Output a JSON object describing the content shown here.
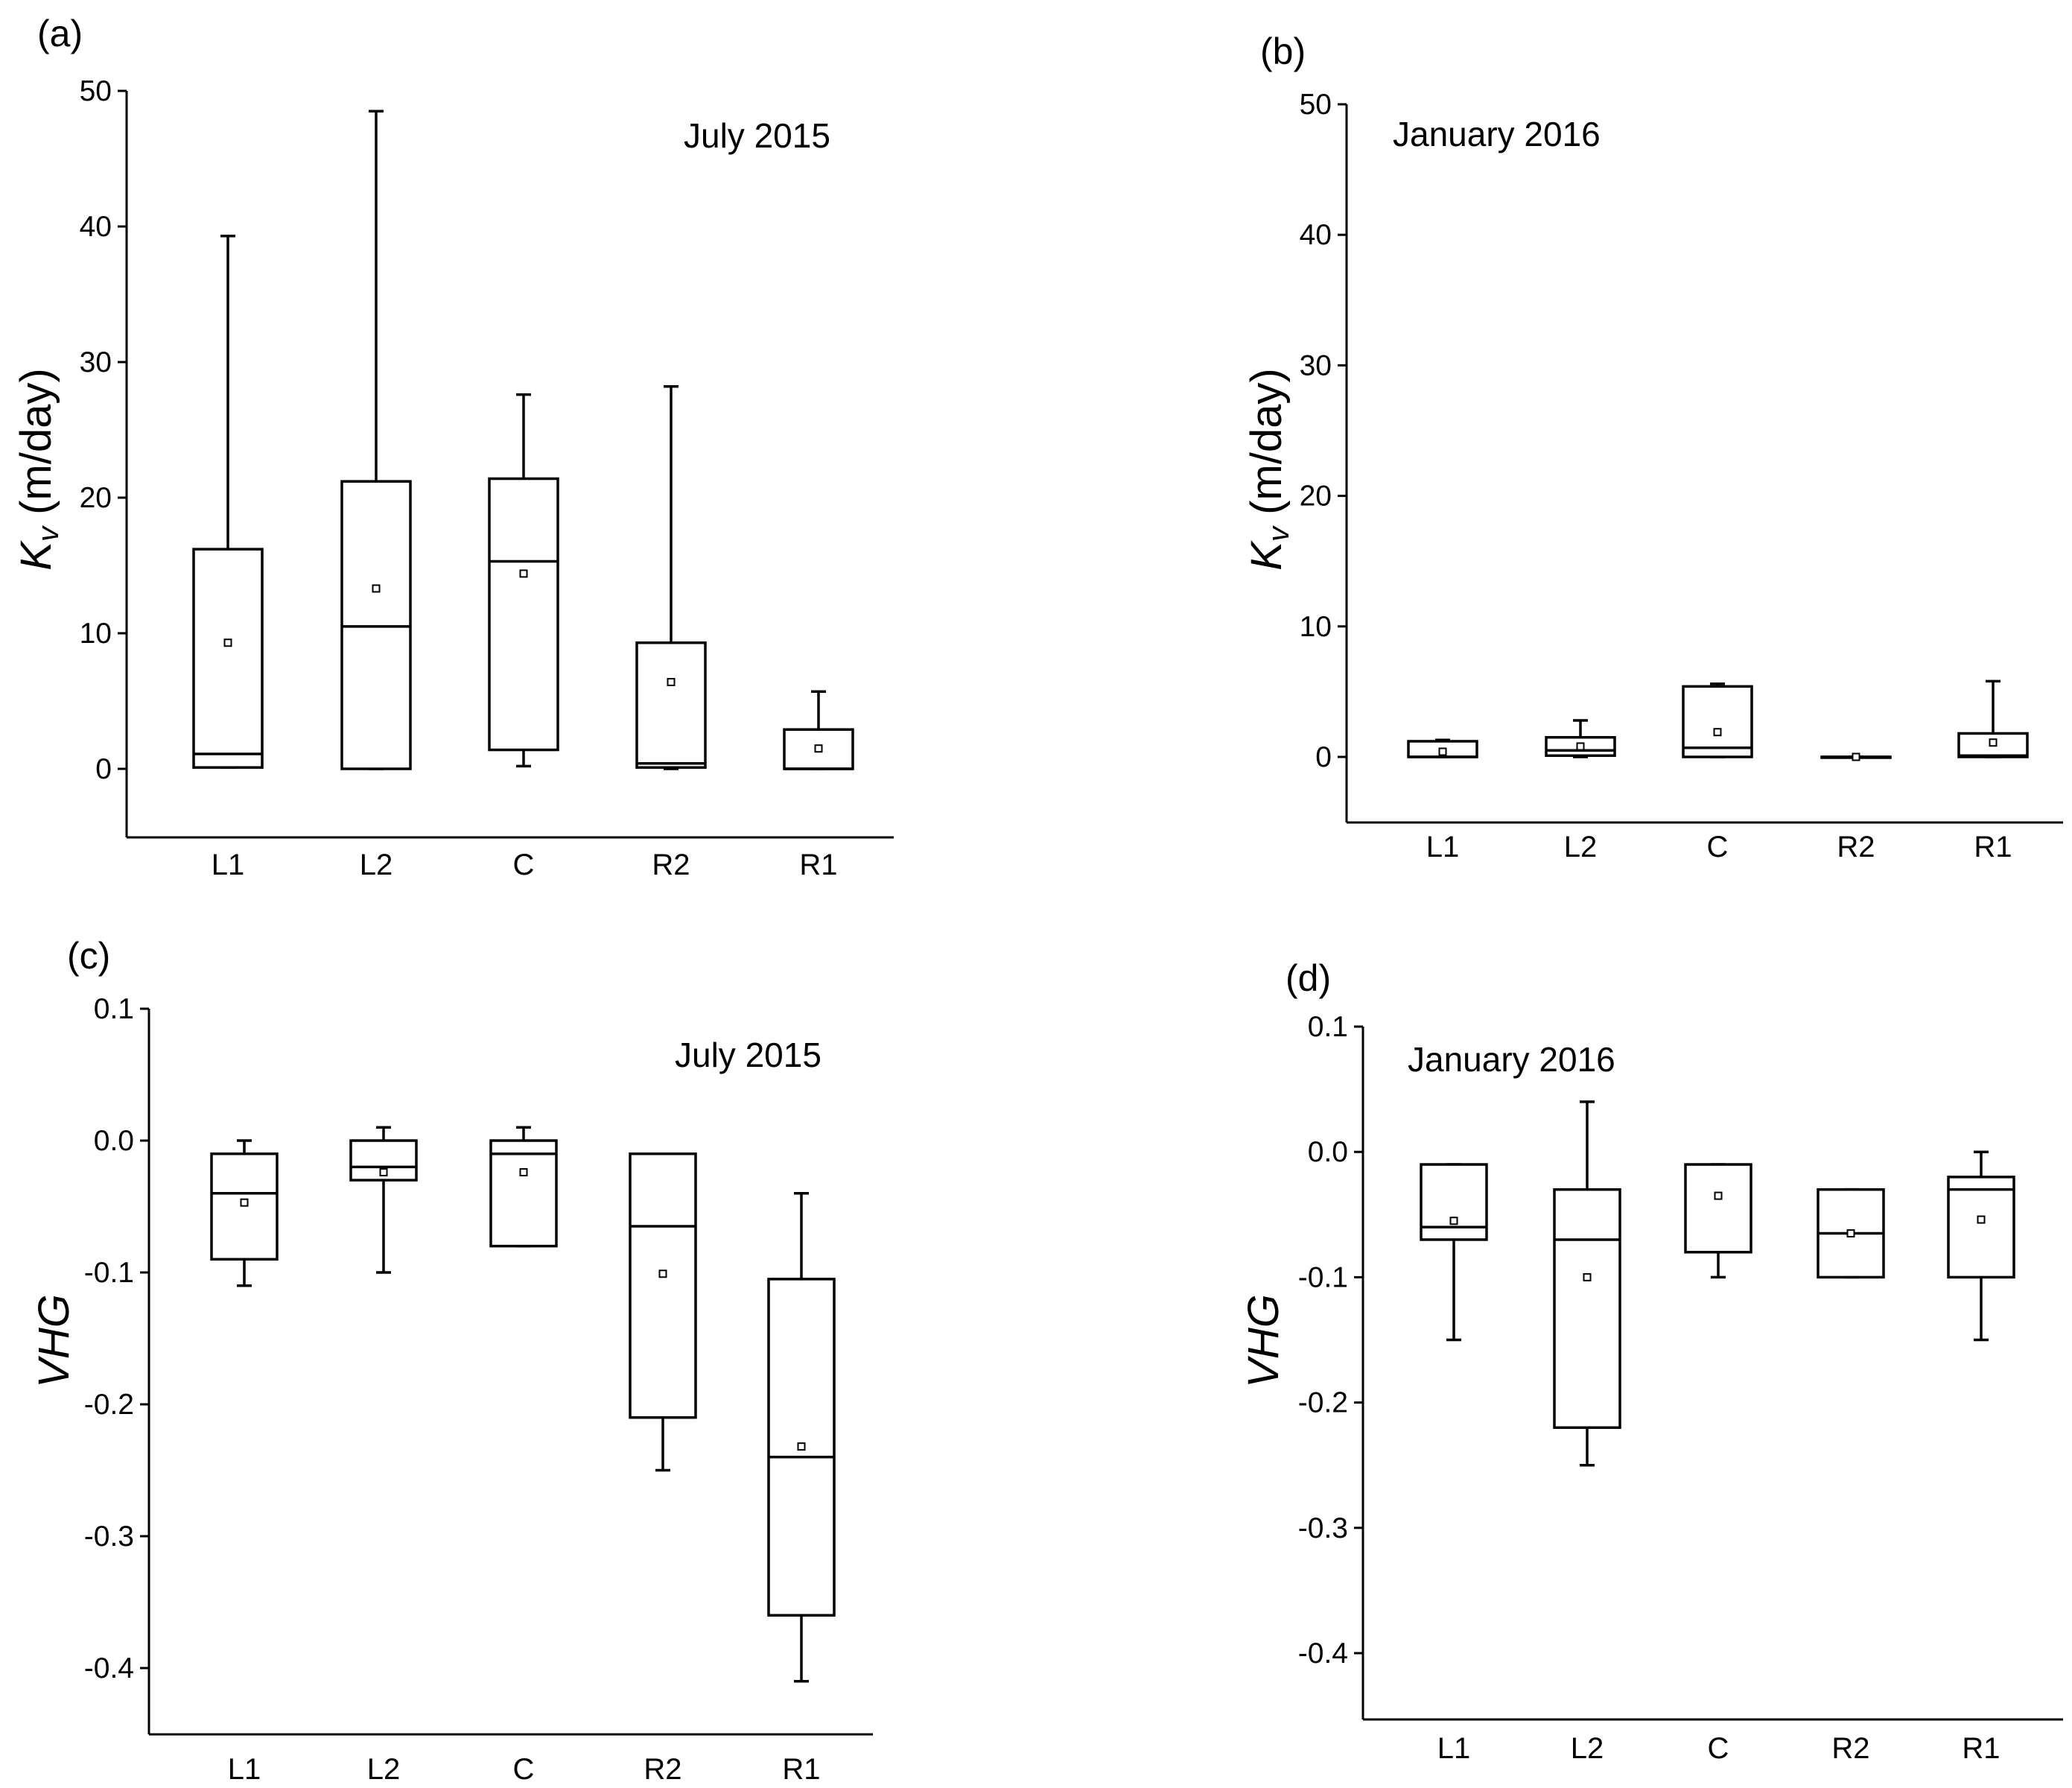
{
  "chart_data": [
    {
      "type": "box",
      "panel_label": "(a)",
      "annotation": "July 2015",
      "ylabel_italic": "K",
      "ylabel_sub": "v",
      "ylabel_rest": " (m/day)",
      "xlabel": "",
      "ylim": [
        -5,
        50
      ],
      "yticks": [
        0,
        10,
        20,
        30,
        40,
        50
      ],
      "ytick_labels": [
        "0",
        "10",
        "20",
        "30",
        "40",
        "50"
      ],
      "categories": [
        "L1",
        "L2",
        "C",
        "R2",
        "R1"
      ],
      "boxes": [
        {
          "min": 0.1,
          "q1": 0.1,
          "median": 1.1,
          "q3": 16.2,
          "max": 39.3,
          "mean": 9.3
        },
        {
          "min": 0.0,
          "q1": 0.0,
          "median": 10.5,
          "q3": 21.2,
          "max": 48.5,
          "mean": 13.3
        },
        {
          "min": 0.2,
          "q1": 1.4,
          "median": 15.3,
          "q3": 21.4,
          "max": 27.6,
          "mean": 14.4
        },
        {
          "min": 0.0,
          "q1": 0.1,
          "median": 0.4,
          "q3": 9.3,
          "max": 28.2,
          "mean": 6.4
        },
        {
          "min": 0.0,
          "q1": 0.0,
          "median": 0.0,
          "q3": 2.9,
          "max": 5.7,
          "mean": 1.5
        }
      ]
    },
    {
      "type": "box",
      "panel_label": "(b)",
      "annotation": "January 2016",
      "ylabel_italic": "K",
      "ylabel_sub": "v",
      "ylabel_rest": " (m/day)",
      "xlabel": "",
      "ylim": [
        -5,
        50
      ],
      "yticks": [
        0,
        10,
        20,
        30,
        40,
        50
      ],
      "ytick_labels": [
        "0",
        "10",
        "20",
        "30",
        "40",
        "50"
      ],
      "categories": [
        "L1",
        "L2",
        "C",
        "R2",
        "R1"
      ],
      "boxes": [
        {
          "min": 0.0,
          "q1": 0.0,
          "median": 0.0,
          "q3": 1.2,
          "max": 1.3,
          "mean": 0.4
        },
        {
          "min": 0.0,
          "q1": 0.1,
          "median": 0.5,
          "q3": 1.5,
          "max": 2.8,
          "mean": 0.8
        },
        {
          "min": 0.0,
          "q1": 0.0,
          "median": 0.7,
          "q3": 5.4,
          "max": 5.6,
          "mean": 1.9
        },
        {
          "min": 0.0,
          "q1": 0.0,
          "median": 0.0,
          "q3": 0.0,
          "max": 0.0,
          "mean": 0.0
        },
        {
          "min": 0.0,
          "q1": 0.0,
          "median": 0.1,
          "q3": 1.8,
          "max": 5.8,
          "mean": 1.1
        }
      ]
    },
    {
      "type": "box",
      "panel_label": "(c)",
      "annotation": "July 2015",
      "ylabel_italic": "VHG",
      "ylabel_sub": "",
      "ylabel_rest": "",
      "xlabel": "",
      "ylim": [
        -0.45,
        0.1
      ],
      "yticks": [
        0.1,
        0.0,
        -0.1,
        -0.2,
        -0.3,
        -0.4
      ],
      "ytick_labels": [
        "0.1",
        "0.0",
        "-0.1",
        "-0.2",
        "-0.3",
        "-0.4"
      ],
      "categories": [
        "L1",
        "L2",
        "C",
        "R2",
        "R1"
      ],
      "boxes": [
        {
          "min": -0.11,
          "q1": -0.09,
          "median": -0.04,
          "q3": -0.01,
          "max": 0.0,
          "mean": -0.047
        },
        {
          "min": -0.1,
          "q1": -0.03,
          "median": -0.02,
          "q3": 0.0,
          "max": 0.01,
          "mean": -0.024
        },
        {
          "min": -0.08,
          "q1": -0.08,
          "median": -0.01,
          "q3": 0.0,
          "max": 0.01,
          "mean": -0.024
        },
        {
          "min": -0.25,
          "q1": -0.21,
          "median": -0.065,
          "q3": -0.01,
          "max": -0.01,
          "mean": -0.101
        },
        {
          "min": -0.41,
          "q1": -0.36,
          "median": -0.24,
          "q3": -0.105,
          "max": -0.04,
          "mean": -0.232
        }
      ]
    },
    {
      "type": "box",
      "panel_label": "(d)",
      "annotation": "January 2016",
      "ylabel_italic": "VHG",
      "ylabel_sub": "",
      "ylabel_rest": "",
      "xlabel": "",
      "ylim": [
        -0.45,
        0.1
      ],
      "yticks": [
        0.1,
        0.0,
        -0.1,
        -0.2,
        -0.3,
        -0.4
      ],
      "ytick_labels": [
        "0.1",
        "0.0",
        "-0.1",
        "-0.2",
        "-0.3",
        "-0.4"
      ],
      "categories": [
        "L1",
        "L2",
        "C",
        "R2",
        "R1"
      ],
      "boxes": [
        {
          "min": -0.15,
          "q1": -0.07,
          "median": -0.06,
          "q3": -0.01,
          "max": -0.01,
          "mean": -0.055
        },
        {
          "min": -0.25,
          "q1": -0.22,
          "median": -0.07,
          "q3": -0.03,
          "max": 0.04,
          "mean": -0.1
        },
        {
          "min": -0.1,
          "q1": -0.08,
          "median": -0.08,
          "q3": -0.01,
          "max": -0.01,
          "mean": -0.035
        },
        {
          "min": -0.1,
          "q1": -0.1,
          "median": -0.065,
          "q3": -0.03,
          "max": -0.03,
          "mean": -0.065
        },
        {
          "min": -0.15,
          "q1": -0.1,
          "median": -0.03,
          "q3": -0.02,
          "max": 0.0,
          "mean": -0.054
        }
      ]
    }
  ]
}
